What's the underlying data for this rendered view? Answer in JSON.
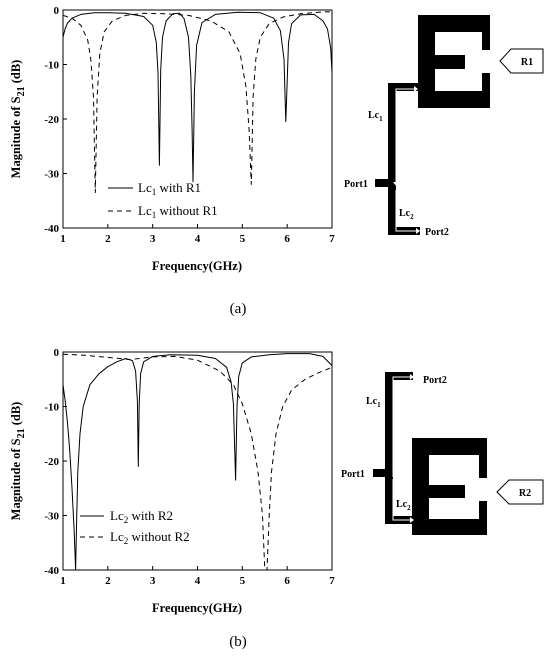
{
  "chart_data": [
    {
      "type": "line",
      "panel_label": "(a)",
      "xlabel": "Frequency(GHz)",
      "ylabel_main": "Magnitude of S",
      "ylabel_sub": "21",
      "ylabel_unit": " (dB)",
      "xlim": [
        1,
        7
      ],
      "ylim": [
        -40,
        0
      ],
      "xticks": [
        "1",
        "2",
        "3",
        "4",
        "5",
        "6",
        "7"
      ],
      "yticks": [
        "0",
        "-10",
        "-20",
        "-30",
        "-40"
      ],
      "legend_position": "bottom-right",
      "series": [
        {
          "name_main": "Lc",
          "name_sub": "1",
          "name_rest": " with R1",
          "style": "solid",
          "x": [
            1.0,
            1.05,
            1.1,
            1.2,
            1.4,
            1.7,
            2.0,
            2.4,
            2.8,
            3.0,
            3.08,
            3.12,
            3.15,
            3.18,
            3.22,
            3.3,
            3.45,
            3.6,
            3.7,
            3.8,
            3.85,
            3.88,
            3.9,
            3.93,
            3.98,
            4.1,
            4.4,
            4.9,
            5.4,
            5.7,
            5.85,
            5.93,
            5.97,
            6.0,
            6.03,
            6.1,
            6.3,
            6.6,
            6.8,
            6.9,
            6.97,
            7.0
          ],
          "y": [
            -5.0,
            -3.4,
            -2.4,
            -1.5,
            -0.8,
            -0.5,
            -0.5,
            -0.6,
            -1.2,
            -2.8,
            -6.0,
            -11.5,
            -28.5,
            -11.0,
            -5.0,
            -2.0,
            -0.7,
            -0.6,
            -1.6,
            -5.0,
            -12.0,
            -22.0,
            -31.5,
            -15.0,
            -6.5,
            -2.3,
            -0.8,
            -0.4,
            -0.5,
            -1.5,
            -3.8,
            -9.0,
            -20.5,
            -13.0,
            -6.0,
            -2.5,
            -0.9,
            -0.8,
            -2.0,
            -3.5,
            -7.0,
            -11.5
          ]
        },
        {
          "name_main": "Lc",
          "name_sub": "1",
          "name_rest": " without R1",
          "style": "dashed",
          "x": [
            1.0,
            1.2,
            1.4,
            1.55,
            1.62,
            1.68,
            1.72,
            1.76,
            1.82,
            1.92,
            2.1,
            2.4,
            2.8,
            3.3,
            3.8,
            4.3,
            4.7,
            4.95,
            5.08,
            5.15,
            5.2,
            5.24,
            5.3,
            5.4,
            5.6,
            5.9,
            6.3,
            6.7,
            7.0
          ],
          "y": [
            -1.0,
            -1.5,
            -2.8,
            -5.5,
            -9.0,
            -16.0,
            -33.5,
            -16.0,
            -8.0,
            -4.0,
            -2.0,
            -1.0,
            -0.6,
            -0.7,
            -1.0,
            -2.0,
            -4.0,
            -8.0,
            -14.0,
            -22.0,
            -32.0,
            -16.0,
            -9.0,
            -5.0,
            -2.5,
            -1.3,
            -0.7,
            -0.4,
            -0.3
          ]
        }
      ]
    },
    {
      "type": "line",
      "panel_label": "(b)",
      "xlabel": "Frequency(GHz)",
      "ylabel_main": "Magnitude of S",
      "ylabel_sub": "21",
      "ylabel_unit": " (dB)",
      "xlim": [
        1,
        7
      ],
      "ylim": [
        -40,
        0
      ],
      "xticks": [
        "1",
        "2",
        "3",
        "4",
        "5",
        "6",
        "7"
      ],
      "yticks": [
        "0",
        "-10",
        "-20",
        "-30",
        "-40"
      ],
      "legend_position": "bottom-left",
      "series": [
        {
          "name_main": "Lc",
          "name_sub": "2",
          "name_rest": " with R2",
          "style": "solid",
          "x": [
            1.0,
            1.05,
            1.1,
            1.15,
            1.2,
            1.25,
            1.28,
            1.3,
            1.33,
            1.38,
            1.45,
            1.6,
            1.8,
            2.0,
            2.2,
            2.4,
            2.55,
            2.62,
            2.66,
            2.68,
            2.7,
            2.73,
            2.8,
            3.0,
            3.4,
            4.0,
            4.4,
            4.65,
            4.75,
            4.8,
            4.85,
            4.88,
            4.92,
            5.0,
            5.2,
            5.6,
            6.0,
            6.5,
            6.8,
            7.0
          ],
          "y": [
            -6.0,
            -9.0,
            -13.0,
            -18.0,
            -25.0,
            -33.0,
            -40.0,
            -32.0,
            -22.0,
            -15.0,
            -10.0,
            -6.0,
            -4.0,
            -2.7,
            -1.8,
            -1.2,
            -1.6,
            -3.5,
            -9.0,
            -21.0,
            -9.5,
            -4.0,
            -1.8,
            -0.8,
            -0.5,
            -0.6,
            -1.2,
            -2.8,
            -5.5,
            -9.5,
            -23.5,
            -10.0,
            -4.5,
            -2.0,
            -0.9,
            -0.5,
            -0.3,
            -0.3,
            -0.8,
            -2.5
          ]
        },
        {
          "name_main": "Lc",
          "name_sub": "2",
          "name_rest": " without R2",
          "style": "dashed",
          "x": [
            1.0,
            1.5,
            2.0,
            2.5,
            3.0,
            3.5,
            4.0,
            4.5,
            4.8,
            5.0,
            5.2,
            5.35,
            5.45,
            5.5,
            5.55,
            5.6,
            5.65,
            5.75,
            5.9,
            6.1,
            6.4,
            6.7,
            7.0
          ],
          "y": [
            -0.4,
            -0.6,
            -1.0,
            -1.4,
            -0.9,
            -0.8,
            -1.5,
            -3.5,
            -6.0,
            -9.5,
            -15.0,
            -22.0,
            -30.0,
            -40.0,
            -40.0,
            -30.0,
            -22.0,
            -15.0,
            -10.0,
            -7.0,
            -5.0,
            -3.8,
            -2.8
          ]
        }
      ]
    }
  ],
  "diagrams": [
    {
      "stub_label": "R1",
      "lc_main_label": "Lc",
      "lc_main_sub": "1",
      "lc_small_label": "Lc",
      "lc_small_sub": "2",
      "port1": "Port1",
      "port2": "Port2"
    },
    {
      "stub_label": "R2",
      "lc_main_label": "Lc",
      "lc_main_sub": "1",
      "lc_small_label": "Lc",
      "lc_small_sub": "2",
      "port1": "Port1",
      "port2": "Port2"
    }
  ],
  "colors": {
    "line": "#000000",
    "background": "#ffffff"
  }
}
